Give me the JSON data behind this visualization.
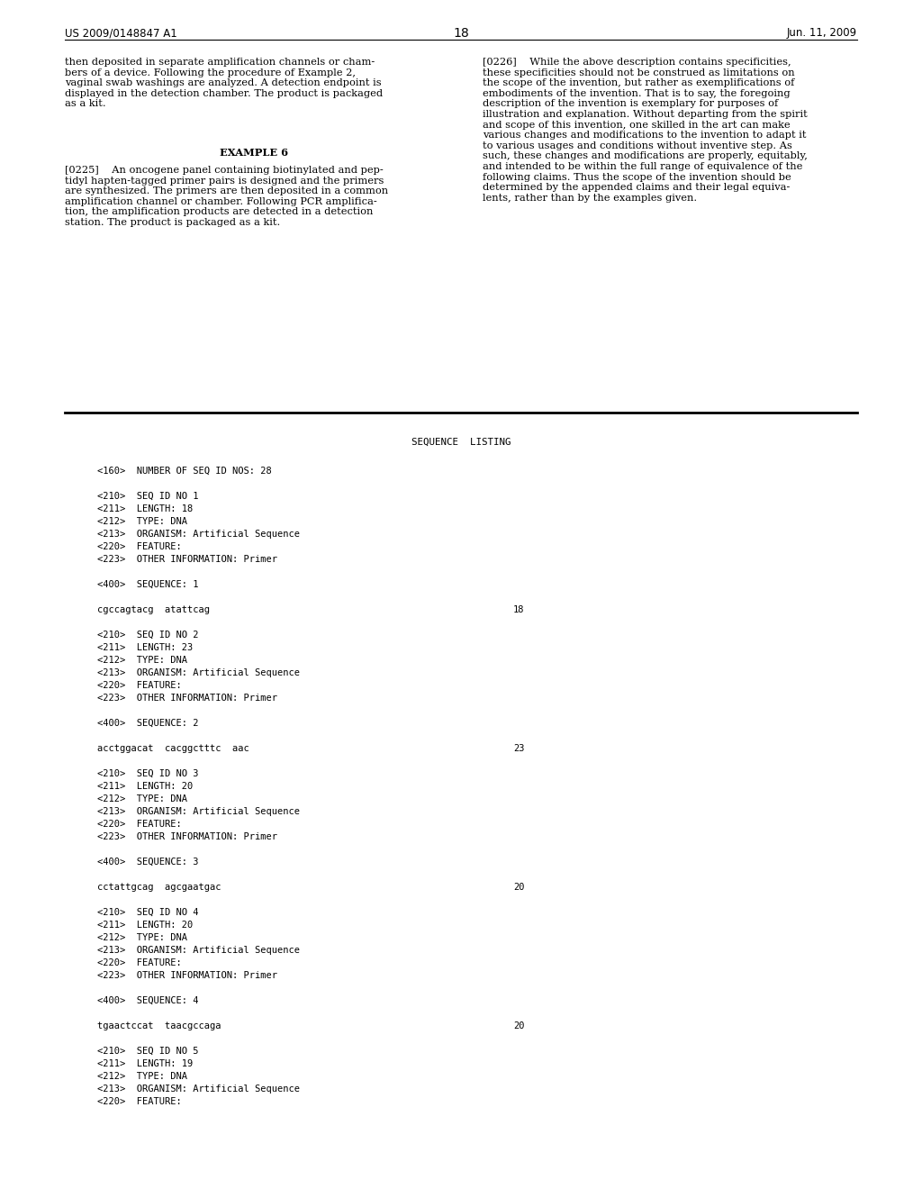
{
  "background_color": "#ffffff",
  "header_left": "US 2009/0148847 A1",
  "header_right": "Jun. 11, 2009",
  "page_number": "18",
  "font_color": "#000000",
  "font_size_header": 8.5,
  "font_size_body": 8.2,
  "font_size_mono": 7.5,
  "font_size_page_num": 10.0,
  "left_para1": "then deposited in separate amplification channels or cham-\nbers of a device. Following the procedure of Example 2,\nvaginal swab washings are analyzed. A detection endpoint is\ndisplayed in the detection chamber. The product is packaged\nas a kit.",
  "example6_heading": "EXAMPLE 6",
  "left_para2": "[0225]    An oncogene panel containing biotinylated and pep-\ntidyl hapten-tagged primer pairs is designed and the primers\nare synthesized. The primers are then deposited in a common\namplification channel or chamber. Following PCR amplifica-\ntion, the amplification products are detected in a detection\nstation. The product is packaged as a kit.",
  "right_para1": "[0226]    While the above description contains specificities,\nthese specificities should not be construed as limitations on\nthe scope of the invention, but rather as exemplifications of\nembodiments of the invention. That is to say, the foregoing\ndescription of the invention is exemplary for purposes of\nillustration and explanation. Without departing from the spirit\nand scope of this invention, one skilled in the art can make\nvarious changes and modifications to the invention to adapt it\nto various usages and conditions without inventive step. As\nsuch, these changes and modifications are properly, equitably,\nand intended to be within the full range of equivalence of the\nfollowing claims. Thus the scope of the invention should be\ndetermined by the appended claims and their legal equiva-\nlents, rather than by the examples given.",
  "sequence_listing_title": "SEQUENCE  LISTING",
  "seq_lines": [
    {
      "text": "<160>  NUMBER OF SEQ ID NOS: 28",
      "blank_after": true
    },
    {
      "text": "<210>  SEQ ID NO 1",
      "blank_after": false
    },
    {
      "text": "<211>  LENGTH: 18",
      "blank_after": false
    },
    {
      "text": "<212>  TYPE: DNA",
      "blank_after": false
    },
    {
      "text": "<213>  ORGANISM: Artificial Sequence",
      "blank_after": false
    },
    {
      "text": "<220>  FEATURE:",
      "blank_after": false
    },
    {
      "text": "<223>  OTHER INFORMATION: Primer",
      "blank_after": true
    },
    {
      "text": "<400>  SEQUENCE: 1",
      "blank_after": true
    },
    {
      "text": "cgccagtacg  atattcag",
      "blank_after": false,
      "number": "18"
    },
    {
      "text": "",
      "blank_after": true
    },
    {
      "text": "<210>  SEQ ID NO 2",
      "blank_after": false
    },
    {
      "text": "<211>  LENGTH: 23",
      "blank_after": false
    },
    {
      "text": "<212>  TYPE: DNA",
      "blank_after": false
    },
    {
      "text": "<213>  ORGANISM: Artificial Sequence",
      "blank_after": false
    },
    {
      "text": "<220>  FEATURE:",
      "blank_after": false
    },
    {
      "text": "<223>  OTHER INFORMATION: Primer",
      "blank_after": true
    },
    {
      "text": "<400>  SEQUENCE: 2",
      "blank_after": true
    },
    {
      "text": "acctggacat  cacggctttc  aac",
      "blank_after": false,
      "number": "23"
    },
    {
      "text": "",
      "blank_after": true
    },
    {
      "text": "<210>  SEQ ID NO 3",
      "blank_after": false
    },
    {
      "text": "<211>  LENGTH: 20",
      "blank_after": false
    },
    {
      "text": "<212>  TYPE: DNA",
      "blank_after": false
    },
    {
      "text": "<213>  ORGANISM: Artificial Sequence",
      "blank_after": false
    },
    {
      "text": "<220>  FEATURE:",
      "blank_after": false
    },
    {
      "text": "<223>  OTHER INFORMATION: Primer",
      "blank_after": true
    },
    {
      "text": "<400>  SEQUENCE: 3",
      "blank_after": true
    },
    {
      "text": "cctattgcag  agcgaatgac",
      "blank_after": false,
      "number": "20"
    },
    {
      "text": "",
      "blank_after": true
    },
    {
      "text": "<210>  SEQ ID NO 4",
      "blank_after": false
    },
    {
      "text": "<211>  LENGTH: 20",
      "blank_after": false
    },
    {
      "text": "<212>  TYPE: DNA",
      "blank_after": false
    },
    {
      "text": "<213>  ORGANISM: Artificial Sequence",
      "blank_after": false
    },
    {
      "text": "<220>  FEATURE:",
      "blank_after": false
    },
    {
      "text": "<223>  OTHER INFORMATION: Primer",
      "blank_after": true
    },
    {
      "text": "<400>  SEQUENCE: 4",
      "blank_after": true
    },
    {
      "text": "tgaactccat  taacgccaga",
      "blank_after": false,
      "number": "20"
    },
    {
      "text": "",
      "blank_after": true
    },
    {
      "text": "<210>  SEQ ID NO 5",
      "blank_after": false
    },
    {
      "text": "<211>  LENGTH: 19",
      "blank_after": false
    },
    {
      "text": "<212>  TYPE: DNA",
      "blank_after": false
    },
    {
      "text": "<213>  ORGANISM: Artificial Sequence",
      "blank_after": false
    },
    {
      "text": "<220>  FEATURE:",
      "blank_after": false
    }
  ]
}
